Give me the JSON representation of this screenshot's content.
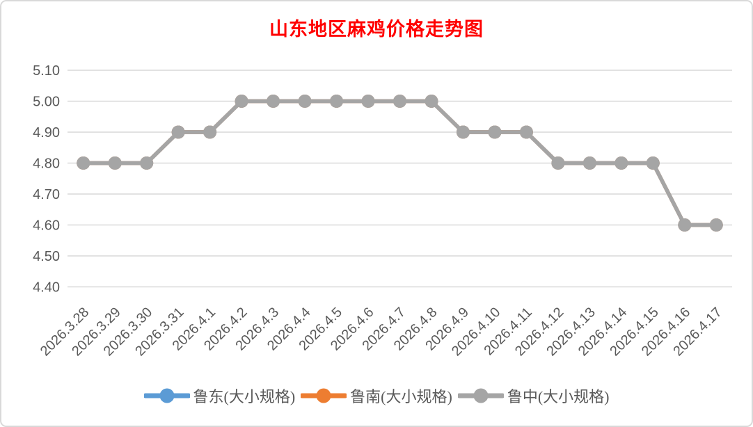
{
  "window": {
    "background_color": "#FFFFFF",
    "border_color": "#D9D9D9"
  },
  "chart_data": {
    "type": "line",
    "title": "山东地区麻鸡价格走势图",
    "title_color": "#FF0000",
    "categories": [
      "2026.3.28",
      "2026.3.29",
      "2026.3.30",
      "2026.3.31",
      "2026.4.1",
      "2026.4.2",
      "2026.4.3",
      "2026.4.4",
      "2026.4.5",
      "2026.4.6",
      "2026.4.7",
      "2026.4.8",
      "2026.4.9",
      "2026.4.10",
      "2026.4.11",
      "2026.4.12",
      "2026.4.13",
      "2026.4.14",
      "2026.4.15",
      "2026.4.16",
      "2026.4.17"
    ],
    "series": [
      {
        "name": "鲁东(大小规格)",
        "color": "#5B9BD5",
        "values": [
          4.8,
          4.8,
          4.8,
          4.9,
          4.9,
          5.0,
          5.0,
          5.0,
          5.0,
          5.0,
          5.0,
          5.0,
          4.9,
          4.9,
          4.9,
          4.8,
          4.8,
          4.8,
          4.8,
          4.6,
          4.6
        ]
      },
      {
        "name": "鲁南(大小规格)",
        "color": "#ED7D31",
        "values": [
          4.8,
          4.8,
          4.8,
          4.9,
          4.9,
          5.0,
          5.0,
          5.0,
          5.0,
          5.0,
          5.0,
          5.0,
          4.9,
          4.9,
          4.9,
          4.8,
          4.8,
          4.8,
          4.8,
          4.6,
          4.6
        ]
      },
      {
        "name": "鲁中(大小规格)",
        "color": "#A5A5A5",
        "values": [
          4.8,
          4.8,
          4.8,
          4.9,
          4.9,
          5.0,
          5.0,
          5.0,
          5.0,
          5.0,
          5.0,
          5.0,
          4.9,
          4.9,
          4.9,
          4.8,
          4.8,
          4.8,
          4.8,
          4.6,
          4.6
        ]
      }
    ],
    "ylim": [
      4.4,
      5.1
    ],
    "yticks": [
      "5.10",
      "5.00",
      "4.90",
      "4.80",
      "4.70",
      "4.60",
      "4.50",
      "4.40"
    ],
    "xlabel": "",
    "ylabel": "",
    "grid": true,
    "gridline_color": "#D9D9D9",
    "axis_label_color": "#595959",
    "legend_position": "bottom"
  }
}
